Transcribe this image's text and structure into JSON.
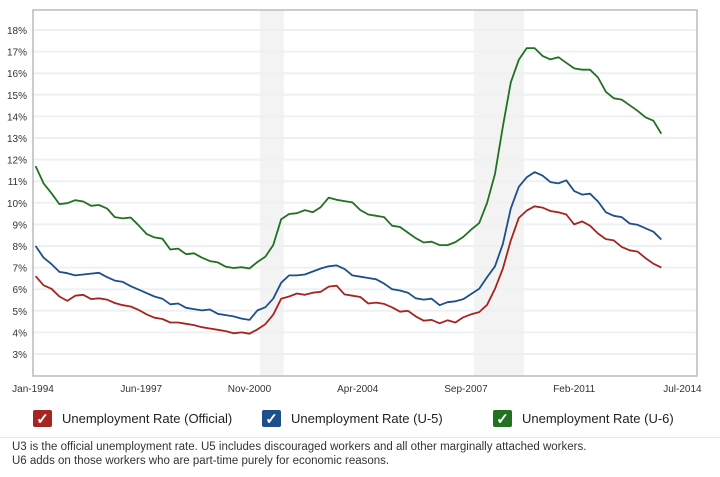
{
  "chart_data": {
    "type": "line",
    "title": "",
    "xlabel": "",
    "ylabel": "",
    "x_tick_labels": [
      "Jan-1994",
      "Jun-1997",
      "Nov-2000",
      "Apr-2004",
      "Sep-2007",
      "Feb-2011",
      "Jul-2014"
    ],
    "y_tick_labels": [
      "3%",
      "4%",
      "5%",
      "6%",
      "7%",
      "8%",
      "9%",
      "10%",
      "11%",
      "12%",
      "13%",
      "14%",
      "15%",
      "16%",
      "17%",
      "18%"
    ],
    "y_ticks": [
      3,
      4,
      5,
      6,
      7,
      8,
      9,
      10,
      11,
      12,
      13,
      14,
      15,
      16,
      17,
      18
    ],
    "ylim": [
      2.1,
      18.9
    ],
    "grid": true,
    "x_note": "Quarterly values from Q1-1994 to Q4-2013",
    "x_start": "1994-Q1",
    "recessions": [
      [
        "Mar-2001",
        "Nov-2001"
      ],
      [
        "Dec-2007",
        "Jun-2009"
      ]
    ],
    "series": [
      {
        "name": "Unemployment Rate (Official)",
        "color": "#a52522",
        "values": [
          6.6,
          6.2,
          6.0,
          5.6,
          5.5,
          5.7,
          5.7,
          5.6,
          5.6,
          5.5,
          5.3,
          5.3,
          5.2,
          5.0,
          4.9,
          4.7,
          4.6,
          4.4,
          4.5,
          4.4,
          4.3,
          4.3,
          4.2,
          4.1,
          4.0,
          4.0,
          4.0,
          3.9,
          4.2,
          4.4,
          4.8,
          5.5,
          5.7,
          5.8,
          5.7,
          5.9,
          5.9,
          6.1,
          6.1,
          5.8,
          5.7,
          5.6,
          5.4,
          5.4,
          5.3,
          5.1,
          5.0,
          5.0,
          4.7,
          4.6,
          4.6,
          4.4,
          4.5,
          4.5,
          4.7,
          4.8,
          5.0,
          5.3,
          6.0,
          6.9,
          8.3,
          9.3,
          9.6,
          9.9,
          9.8,
          9.6,
          9.5,
          9.5,
          9.0,
          9.1,
          9.0,
          8.6,
          8.3,
          8.2,
          8.0,
          7.8,
          7.7,
          7.5,
          7.2,
          7.0
        ]
      },
      {
        "name": "Unemployment Rate (U-5)",
        "color": "#1d4f8a",
        "values": [
          8.0,
          7.4,
          7.2,
          6.8,
          6.7,
          6.7,
          6.7,
          6.7,
          6.7,
          6.6,
          6.4,
          6.3,
          6.2,
          6.0,
          5.8,
          5.6,
          5.6,
          5.3,
          5.3,
          5.2,
          5.1,
          5.0,
          5.0,
          4.9,
          4.8,
          4.7,
          4.7,
          4.6,
          5.0,
          5.1,
          5.6,
          6.3,
          6.6,
          6.7,
          6.7,
          6.8,
          6.9,
          7.1,
          7.1,
          6.9,
          6.7,
          6.6,
          6.5,
          6.4,
          6.3,
          6.0,
          5.9,
          5.9,
          5.6,
          5.5,
          5.5,
          5.3,
          5.4,
          5.4,
          5.6,
          5.8,
          6.0,
          6.5,
          7.1,
          8.1,
          9.7,
          10.8,
          11.2,
          11.4,
          11.2,
          11.0,
          10.9,
          11.0,
          10.6,
          10.4,
          10.4,
          10.0,
          9.6,
          9.4,
          9.3,
          9.1,
          9.0,
          8.8,
          8.6,
          8.3
        ]
      },
      {
        "name": "Unemployment Rate (U-6)",
        "color": "#237023",
        "values": [
          11.7,
          10.9,
          10.4,
          10.0,
          10.0,
          10.1,
          10.0,
          9.9,
          9.9,
          9.7,
          9.4,
          9.3,
          9.3,
          8.9,
          8.6,
          8.4,
          8.3,
          7.9,
          7.9,
          7.6,
          7.6,
          7.5,
          7.3,
          7.2,
          7.1,
          7.0,
          7.0,
          6.9,
          7.3,
          7.5,
          8.0,
          9.3,
          9.5,
          9.5,
          9.6,
          9.6,
          9.8,
          10.2,
          10.2,
          10.1,
          10.0,
          9.6,
          9.5,
          9.4,
          9.3,
          9.0,
          8.9,
          8.6,
          8.3,
          8.2,
          8.2,
          8.0,
          8.1,
          8.2,
          8.4,
          8.7,
          9.1,
          10.0,
          11.3,
          13.6,
          15.6,
          16.6,
          17.1,
          17.2,
          16.8,
          16.6,
          16.8,
          16.5,
          16.2,
          16.1,
          16.2,
          15.8,
          15.1,
          14.9,
          14.8,
          14.5,
          14.2,
          14.0,
          13.8,
          13.2
        ]
      }
    ]
  },
  "legend": {
    "checkmark": "✓",
    "items": [
      "Unemployment Rate (Official)",
      "Unemployment Rate (U-5)",
      "Unemployment Rate (U-6)"
    ]
  },
  "footnote": {
    "line1": "U3 is the official unemployment rate. U5 includes discouraged workers and all other marginally attached workers.",
    "line2": "U6 adds on those workers who are part-time purely for economic reasons."
  }
}
